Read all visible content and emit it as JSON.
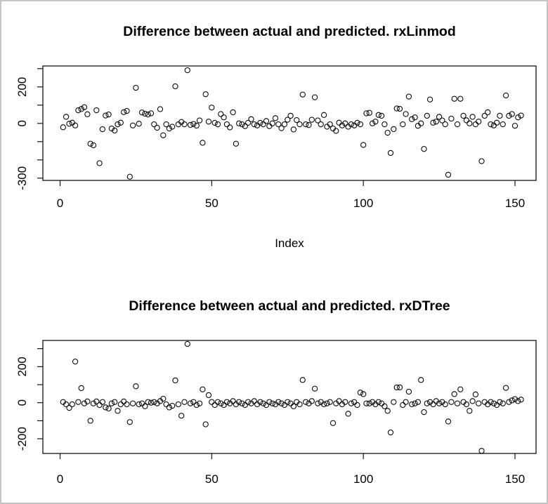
{
  "window": {
    "background": "#ffffff",
    "frame_border_color": "#c4c4c4",
    "axis_color": "#000000",
    "marker": "open-circle"
  },
  "chart_data": [
    {
      "type": "scatter",
      "title": "Difference between actual and predicted. rxLinmod",
      "xlabel": "Index",
      "ylabel": "",
      "xlim": [
        -6,
        157
      ],
      "ylim": [
        -312,
        315
      ],
      "grid": false,
      "x_ticks": [
        0,
        50,
        100,
        150
      ],
      "y_ticks": [
        300,
        200,
        100,
        0,
        -100,
        -200,
        -300
      ],
      "y_tick_labels": [
        "200",
        "0",
        "-300"
      ],
      "points": [
        [
          1,
          -21
        ],
        [
          2,
          36
        ],
        [
          3,
          -2
        ],
        [
          4,
          4
        ],
        [
          5,
          -11
        ],
        [
          6,
          72
        ],
        [
          7,
          79
        ],
        [
          8,
          89
        ],
        [
          9,
          50
        ],
        [
          10,
          -111
        ],
        [
          11,
          -120
        ],
        [
          12,
          72
        ],
        [
          13,
          -218
        ],
        [
          14,
          -32
        ],
        [
          15,
          43
        ],
        [
          16,
          49
        ],
        [
          17,
          -28
        ],
        [
          18,
          -39
        ],
        [
          19,
          -5
        ],
        [
          20,
          4
        ],
        [
          21,
          62
        ],
        [
          22,
          68
        ],
        [
          23,
          -292
        ],
        [
          24,
          -11
        ],
        [
          25,
          195
        ],
        [
          26,
          -2
        ],
        [
          27,
          60
        ],
        [
          28,
          53
        ],
        [
          29,
          49
        ],
        [
          30,
          55
        ],
        [
          31,
          -5
        ],
        [
          32,
          -24
        ],
        [
          33,
          78
        ],
        [
          34,
          -65
        ],
        [
          35,
          -5
        ],
        [
          36,
          -28
        ],
        [
          37,
          -18
        ],
        [
          38,
          203
        ],
        [
          39,
          -5
        ],
        [
          40,
          8
        ],
        [
          41,
          -5
        ],
        [
          42,
          291
        ],
        [
          43,
          -8
        ],
        [
          44,
          -3
        ],
        [
          45,
          -12
        ],
        [
          46,
          16
        ],
        [
          47,
          -106
        ],
        [
          48,
          160
        ],
        [
          49,
          10
        ],
        [
          50,
          87
        ],
        [
          51,
          3
        ],
        [
          52,
          -5
        ],
        [
          53,
          51
        ],
        [
          54,
          33
        ],
        [
          55,
          -5
        ],
        [
          56,
          -22
        ],
        [
          57,
          61
        ],
        [
          58,
          -111
        ],
        [
          59,
          0
        ],
        [
          60,
          -5
        ],
        [
          61,
          -15
        ],
        [
          62,
          3
        ],
        [
          63,
          23
        ],
        [
          64,
          -5
        ],
        [
          65,
          -11
        ],
        [
          66,
          3
        ],
        [
          67,
          -5
        ],
        [
          68,
          13
        ],
        [
          69,
          -15
        ],
        [
          70,
          0
        ],
        [
          71,
          29
        ],
        [
          72,
          -5
        ],
        [
          73,
          -26
        ],
        [
          74,
          -5
        ],
        [
          75,
          20
        ],
        [
          76,
          42
        ],
        [
          77,
          -33
        ],
        [
          78,
          18
        ],
        [
          79,
          -5
        ],
        [
          80,
          158
        ],
        [
          81,
          -5
        ],
        [
          82,
          -9
        ],
        [
          83,
          20
        ],
        [
          84,
          143
        ],
        [
          85,
          16
        ],
        [
          86,
          -5
        ],
        [
          87,
          46
        ],
        [
          88,
          -18
        ],
        [
          89,
          -5
        ],
        [
          90,
          -28
        ],
        [
          91,
          -41
        ],
        [
          92,
          4
        ],
        [
          93,
          -11
        ],
        [
          94,
          0
        ],
        [
          95,
          -18
        ],
        [
          96,
          -5
        ],
        [
          97,
          -11
        ],
        [
          98,
          3
        ],
        [
          99,
          -5
        ],
        [
          100,
          -118
        ],
        [
          101,
          55
        ],
        [
          102,
          58
        ],
        [
          103,
          0
        ],
        [
          104,
          10
        ],
        [
          105,
          46
        ],
        [
          106,
          42
        ],
        [
          107,
          -5
        ],
        [
          108,
          -51
        ],
        [
          109,
          -162
        ],
        [
          110,
          -31
        ],
        [
          111,
          82
        ],
        [
          112,
          80
        ],
        [
          113,
          -5
        ],
        [
          114,
          51
        ],
        [
          115,
          147
        ],
        [
          116,
          23
        ],
        [
          117,
          33
        ],
        [
          118,
          -13
        ],
        [
          119,
          0
        ],
        [
          120,
          -140
        ],
        [
          121,
          42
        ],
        [
          122,
          131
        ],
        [
          123,
          4
        ],
        [
          124,
          10
        ],
        [
          125,
          36
        ],
        [
          126,
          16
        ],
        [
          127,
          -5
        ],
        [
          128,
          -281
        ],
        [
          129,
          26
        ],
        [
          130,
          135
        ],
        [
          131,
          -5
        ],
        [
          132,
          135
        ],
        [
          133,
          42
        ],
        [
          134,
          17
        ],
        [
          135,
          0
        ],
        [
          136,
          36
        ],
        [
          137,
          -5
        ],
        [
          138,
          10
        ],
        [
          139,
          -207
        ],
        [
          140,
          42
        ],
        [
          141,
          61
        ],
        [
          142,
          -5
        ],
        [
          143,
          -11
        ],
        [
          144,
          4
        ],
        [
          145,
          42
        ],
        [
          146,
          -5
        ],
        [
          147,
          153
        ],
        [
          148,
          42
        ],
        [
          149,
          51
        ],
        [
          150,
          -13
        ],
        [
          151,
          33
        ],
        [
          152,
          43
        ]
      ]
    },
    {
      "type": "scatter",
      "title": "Difference between actual and predicted. rxDTree",
      "xlabel": "",
      "ylabel": "",
      "xlim": [
        -6,
        157
      ],
      "ylim": [
        -282,
        345
      ],
      "grid": false,
      "x_ticks": [
        0,
        50,
        100,
        150
      ],
      "y_ticks": [
        300,
        200,
        100,
        0,
        -100,
        -200
      ],
      "y_tick_labels": [
        "200",
        "0",
        "-200"
      ],
      "points": [
        [
          1,
          4
        ],
        [
          2,
          -9
        ],
        [
          3,
          -29
        ],
        [
          4,
          -9
        ],
        [
          5,
          228
        ],
        [
          6,
          4
        ],
        [
          7,
          81
        ],
        [
          8,
          -4
        ],
        [
          9,
          7
        ],
        [
          10,
          -100
        ],
        [
          11,
          -4
        ],
        [
          12,
          7
        ],
        [
          13,
          -13
        ],
        [
          14,
          4
        ],
        [
          15,
          -26
        ],
        [
          16,
          -32
        ],
        [
          17,
          -4
        ],
        [
          18,
          4
        ],
        [
          19,
          -45
        ],
        [
          20,
          -9
        ],
        [
          21,
          7
        ],
        [
          22,
          -9
        ],
        [
          23,
          -107
        ],
        [
          24,
          -4
        ],
        [
          25,
          91
        ],
        [
          26,
          -9
        ],
        [
          27,
          -4
        ],
        [
          28,
          -20
        ],
        [
          29,
          4
        ],
        [
          30,
          0
        ],
        [
          31,
          4
        ],
        [
          32,
          -4
        ],
        [
          33,
          9
        ],
        [
          34,
          22
        ],
        [
          35,
          -9
        ],
        [
          36,
          -26
        ],
        [
          37,
          -17
        ],
        [
          38,
          124
        ],
        [
          39,
          -9
        ],
        [
          40,
          -72
        ],
        [
          41,
          4
        ],
        [
          42,
          326
        ],
        [
          43,
          -4
        ],
        [
          44,
          4
        ],
        [
          45,
          -13
        ],
        [
          46,
          -4
        ],
        [
          47,
          74
        ],
        [
          48,
          -120
        ],
        [
          49,
          42
        ],
        [
          50,
          4
        ],
        [
          51,
          -13
        ],
        [
          52,
          4
        ],
        [
          53,
          -4
        ],
        [
          54,
          -13
        ],
        [
          55,
          4
        ],
        [
          56,
          -4
        ],
        [
          57,
          9
        ],
        [
          58,
          -9
        ],
        [
          59,
          4
        ],
        [
          60,
          -4
        ],
        [
          61,
          -13
        ],
        [
          62,
          4
        ],
        [
          63,
          -4
        ],
        [
          64,
          9
        ],
        [
          65,
          -9
        ],
        [
          66,
          4
        ],
        [
          67,
          -4
        ],
        [
          68,
          -13
        ],
        [
          69,
          4
        ],
        [
          70,
          -4
        ],
        [
          71,
          -9
        ],
        [
          72,
          4
        ],
        [
          73,
          -4
        ],
        [
          74,
          -13
        ],
        [
          75,
          4
        ],
        [
          76,
          -4
        ],
        [
          77,
          -20
        ],
        [
          78,
          4
        ],
        [
          79,
          -9
        ],
        [
          80,
          126
        ],
        [
          81,
          4
        ],
        [
          82,
          -4
        ],
        [
          83,
          9
        ],
        [
          84,
          78
        ],
        [
          85,
          -4
        ],
        [
          86,
          4
        ],
        [
          87,
          -9
        ],
        [
          88,
          -4
        ],
        [
          89,
          4
        ],
        [
          90,
          -113
        ],
        [
          91,
          -4
        ],
        [
          92,
          9
        ],
        [
          93,
          -9
        ],
        [
          94,
          4
        ],
        [
          95,
          -61
        ],
        [
          96,
          -4
        ],
        [
          97,
          4
        ],
        [
          98,
          -13
        ],
        [
          99,
          56
        ],
        [
          100,
          48
        ],
        [
          101,
          -4
        ],
        [
          102,
          -4
        ],
        [
          103,
          4
        ],
        [
          104,
          -9
        ],
        [
          105,
          4
        ],
        [
          106,
          -4
        ],
        [
          107,
          -20
        ],
        [
          108,
          -45
        ],
        [
          109,
          -165
        ],
        [
          110,
          4
        ],
        [
          111,
          85
        ],
        [
          112,
          85
        ],
        [
          113,
          -13
        ],
        [
          114,
          4
        ],
        [
          115,
          61
        ],
        [
          116,
          -9
        ],
        [
          117,
          -4
        ],
        [
          118,
          4
        ],
        [
          119,
          126
        ],
        [
          120,
          -52
        ],
        [
          121,
          -4
        ],
        [
          122,
          4
        ],
        [
          123,
          -9
        ],
        [
          124,
          9
        ],
        [
          125,
          -4
        ],
        [
          126,
          4
        ],
        [
          127,
          -9
        ],
        [
          128,
          -104
        ],
        [
          129,
          4
        ],
        [
          130,
          48
        ],
        [
          131,
          -4
        ],
        [
          132,
          74
        ],
        [
          133,
          4
        ],
        [
          134,
          -9
        ],
        [
          135,
          -45
        ],
        [
          136,
          9
        ],
        [
          137,
          46
        ],
        [
          138,
          -4
        ],
        [
          139,
          -267
        ],
        [
          140,
          4
        ],
        [
          141,
          -9
        ],
        [
          142,
          4
        ],
        [
          143,
          -4
        ],
        [
          144,
          -13
        ],
        [
          145,
          4
        ],
        [
          146,
          -4
        ],
        [
          147,
          82
        ],
        [
          148,
          4
        ],
        [
          149,
          13
        ],
        [
          150,
          20
        ],
        [
          151,
          9
        ],
        [
          152,
          17
        ]
      ]
    }
  ]
}
